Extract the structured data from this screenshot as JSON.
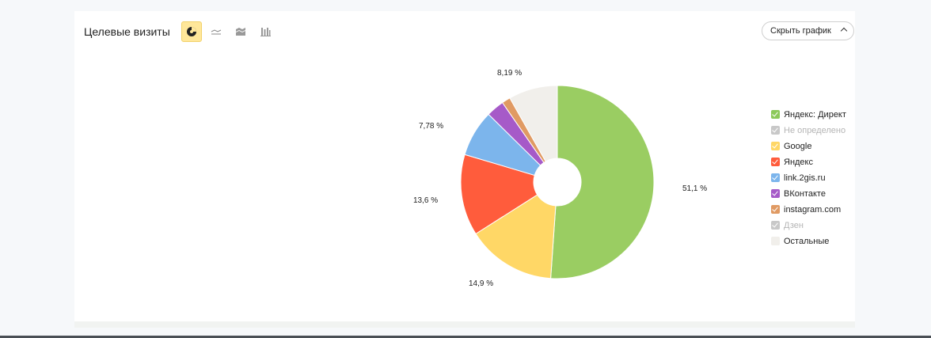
{
  "title": "Целевые визиты",
  "hide_chart_label": "Скрыть график",
  "view_buttons": [
    {
      "name": "pie-view-button",
      "icon": "pie-chart-icon",
      "active": true
    },
    {
      "name": "line-view-button",
      "icon": "line-chart-icon",
      "active": false
    },
    {
      "name": "area-view-button",
      "icon": "area-chart-icon",
      "active": false
    },
    {
      "name": "bar-view-button",
      "icon": "bar-chart-icon",
      "active": false
    }
  ],
  "chart_data": {
    "type": "pie",
    "donut": true,
    "slices": [
      {
        "name": "Яндекс: Директ",
        "value": 51.1,
        "label": "51,1 %",
        "color": "#9acd62",
        "checked": true
      },
      {
        "name": "Google",
        "value": 14.9,
        "label": "14,9 %",
        "color": "#ffd766",
        "checked": true
      },
      {
        "name": "Яндекс",
        "value": 13.6,
        "label": "13,6 %",
        "color": "#ff5c3c",
        "checked": true
      },
      {
        "name": "link.2gis.ru",
        "value": 7.78,
        "label": "7,78 %",
        "color": "#7cb5ec",
        "checked": true
      },
      {
        "name": "ВКонтакте",
        "value": 3.0,
        "label": "",
        "color": "#a65ac8",
        "checked": true
      },
      {
        "name": "instagram.com",
        "value": 1.43,
        "label": "",
        "color": "#e09a63",
        "checked": true
      },
      {
        "name": "Остальные",
        "value": 8.19,
        "label": "8,19 %",
        "color": "#f1efeb",
        "checked": true
      }
    ]
  },
  "legend": [
    {
      "label": "Яндекс: Директ",
      "color": "#8dc95a",
      "state": "on"
    },
    {
      "label": "Не определено",
      "color": "#c8c8c8",
      "state": "off"
    },
    {
      "label": "Google",
      "color": "#ffd766",
      "state": "on"
    },
    {
      "label": "Яндекс",
      "color": "#ff5c3c",
      "state": "on"
    },
    {
      "label": "link.2gis.ru",
      "color": "#7cb5ec",
      "state": "on"
    },
    {
      "label": "ВКонтакте",
      "color": "#a65ac8",
      "state": "on"
    },
    {
      "label": "instagram.com",
      "color": "#e09a63",
      "state": "on"
    },
    {
      "label": "Дзен",
      "color": "#c8c8c8",
      "state": "off"
    },
    {
      "label": "Остальные",
      "color": "#f1efeb",
      "state": "nocheck"
    }
  ]
}
